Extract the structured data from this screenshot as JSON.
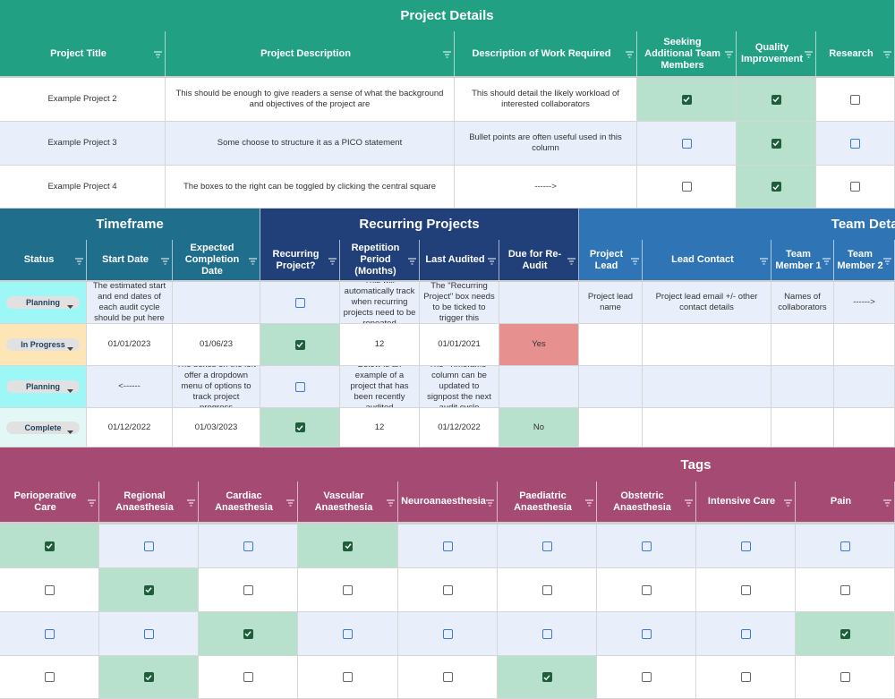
{
  "sections": [
    {
      "groups": [
        {
          "title": "Project Details",
          "color": "#21a083",
          "columns": [
            "Project Title",
            "Project Description",
            "Description of Work Required",
            "Seeking Additional Team Members",
            "Quality Improvement",
            "Research"
          ]
        }
      ],
      "row_fills": [
        "#ffffff",
        "#e8effb",
        "#ffffff"
      ],
      "rows": [
        [
          "Example Project 2",
          "This should be enough to give readers a sense of what the background and objectives of the project are",
          "This should detail the likely workload of interested collaborators",
          true,
          true,
          false
        ],
        [
          "Example Project 3",
          "Some choose to structure it as a PICO statement",
          "Bullet points are often useful used in this column",
          false,
          true,
          false
        ],
        [
          "Example Project 4",
          "The boxes to the right can be toggled by clicking the central square",
          "------>",
          false,
          true,
          false
        ]
      ]
    },
    {
      "groups": [
        {
          "title": "Timeframe",
          "color": "#1f6e8c",
          "columns": [
            "Status",
            "Start Date",
            "Expected Completion Date"
          ]
        },
        {
          "title": "Recurring Projects",
          "color": "#213f78",
          "columns": [
            "Recurring Project?",
            "Repetition Period (Months)",
            "Last Audited",
            "Due for Re-Audit"
          ]
        },
        {
          "title": "Team Details",
          "color": "#2f74b5",
          "columns": [
            "Project Lead",
            "Lead Contact",
            "Team Member 1",
            "Team Member 2"
          ]
        }
      ],
      "row_fills": [
        "#e8effb",
        "#ffffff",
        "#e8effb",
        "#ffffff"
      ],
      "rows": [
        [
          {
            "status": "Planning",
            "fill": "#9ef7f7"
          },
          "The estimated start and end dates of each audit cycle should be put here",
          null,
          false,
          "This will automatically track when recurring projects need to be repeated",
          "The \"Recurring Project\" box needs to be ticked to trigger this",
          null,
          "Project lead name",
          "Project lead email +/- other contact details",
          "Names of collaborators",
          "------>"
        ],
        [
          {
            "status": "In Progress",
            "fill": "#fde5b5"
          },
          "01/01/2023",
          "01/06/23",
          true,
          "12",
          "01/01/2021",
          {
            "text": "Yes",
            "fill": "#e6918f"
          },
          null,
          null,
          null,
          null
        ],
        [
          {
            "status": "Planning",
            "fill": "#9ef7f7"
          },
          "<------",
          "The boxes on the left offer a dropdown menu of options to track project progress",
          false,
          "Below is an example of a project that has been recently audited",
          "The \"Timefame\" column can be updated to signpost the next audit cycle",
          null,
          null,
          null,
          null,
          null
        ],
        [
          {
            "status": "Complete",
            "fill": "#e4f7f7"
          },
          "01/12/2022",
          "01/03/2023",
          true,
          "12",
          "01/12/2022",
          {
            "text": "No",
            "fill": "#b7e1cd"
          },
          null,
          null,
          null,
          null
        ]
      ]
    },
    {
      "groups": [
        {
          "title": "Tags",
          "color": "#a44a73",
          "columns": [
            "Perioperative Care",
            "Regional Anaesthesia",
            "Cardiac Anaesthesia",
            "Vascular Anaesthesia",
            "Neuroanaesthesia",
            "Paediatric Anaesthesia",
            "Obstetric Anaesthesia",
            "Intensive Care",
            "Pain"
          ]
        }
      ],
      "row_fills": [
        "#e8effb",
        "#ffffff",
        "#e8effb",
        "#ffffff"
      ],
      "rows": [
        [
          true,
          false,
          false,
          true,
          false,
          false,
          false,
          false,
          false
        ],
        [
          false,
          true,
          false,
          false,
          false,
          false,
          false,
          false,
          false
        ],
        [
          false,
          false,
          true,
          false,
          false,
          false,
          false,
          false,
          true
        ],
        [
          false,
          true,
          false,
          false,
          false,
          true,
          false,
          false,
          false
        ]
      ]
    }
  ]
}
